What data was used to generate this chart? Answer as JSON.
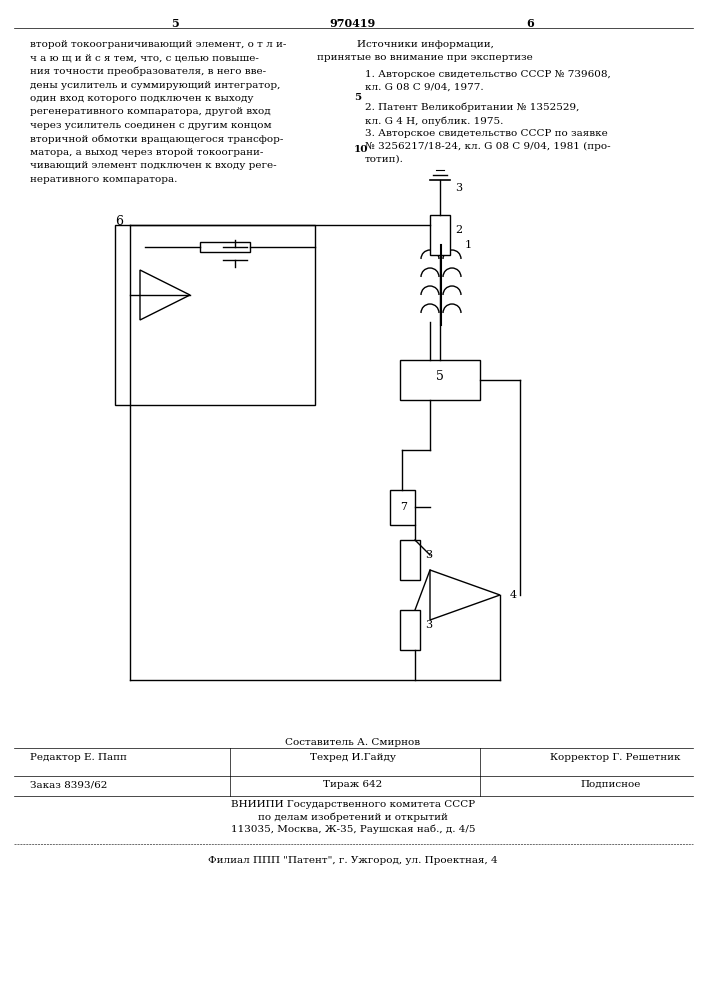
{
  "page_number_left": "5",
  "patent_number": "970419",
  "page_number_right": "6",
  "left_column_text": [
    "второй токоограничивающий элемент, о т л и-",
    "ч а ю щ и й с я тем, что, с целью повыше-",
    "ния точности преобразователя, в него вве-",
    "дены усилитель и суммирующий интегратор,",
    "один вход которого подключен к выходу",
    "регенеративного компаратора, другой вход",
    "через усилитель соединен с другим концом",
    "вторичной обмотки вращающегося трансфор-",
    "матора, а выход через второй токоограни-",
    "чивающий элемент подключен к входу реге-",
    "неративного компаратора."
  ],
  "right_column_header": "Источники информации,",
  "right_column_subheader": "принятые во внимание при экспертизе",
  "right_column_refs": [
    {
      "num": "1.",
      "text": " Авторское свидетельство СССР № 739608,"
    },
    {
      "num": "",
      "text": "кл. G 08 С 9/04, 1977."
    },
    {
      "num": "2.",
      "text": " Патент Великобритании № 1352529,"
    },
    {
      "num": "",
      "text": "кл. G 4 Н, опублик. 1975."
    },
    {
      "num": "3.",
      "text": " Авторское свидетельство СССР по заявке"
    },
    {
      "num": "",
      "text": "№ 3256217/18-24, кл. G 08 С 9/04, 1981 (про-"
    },
    {
      "num": "",
      "text": "тотип)."
    }
  ],
  "right_margin_5": "5",
  "right_margin_10": "10",
  "footer_line1_left": "Редактор Е. Папп",
  "footer_line1_center_top": "Составитель А. Смирнов",
  "footer_line1_center": "Техред И.Гайду",
  "footer_line1_right": "Корректор Г. Решетник",
  "footer_line2_left": "Заказ 8393/62",
  "footer_line2_center": "Тираж 642",
  "footer_line2_right": "Подписное",
  "footer_line3": "ВНИИПИ Государственного комитета СССР",
  "footer_line4": "по делам изобретений и открытий",
  "footer_line5": "113035, Москва, Ж-35, Раушская наб., д. 4/5",
  "footer_line6": "Филиал ППП \"Патент\", г. Ужгород, ул. Проектная, 4",
  "bg_color": "#ffffff",
  "text_color": "#000000"
}
